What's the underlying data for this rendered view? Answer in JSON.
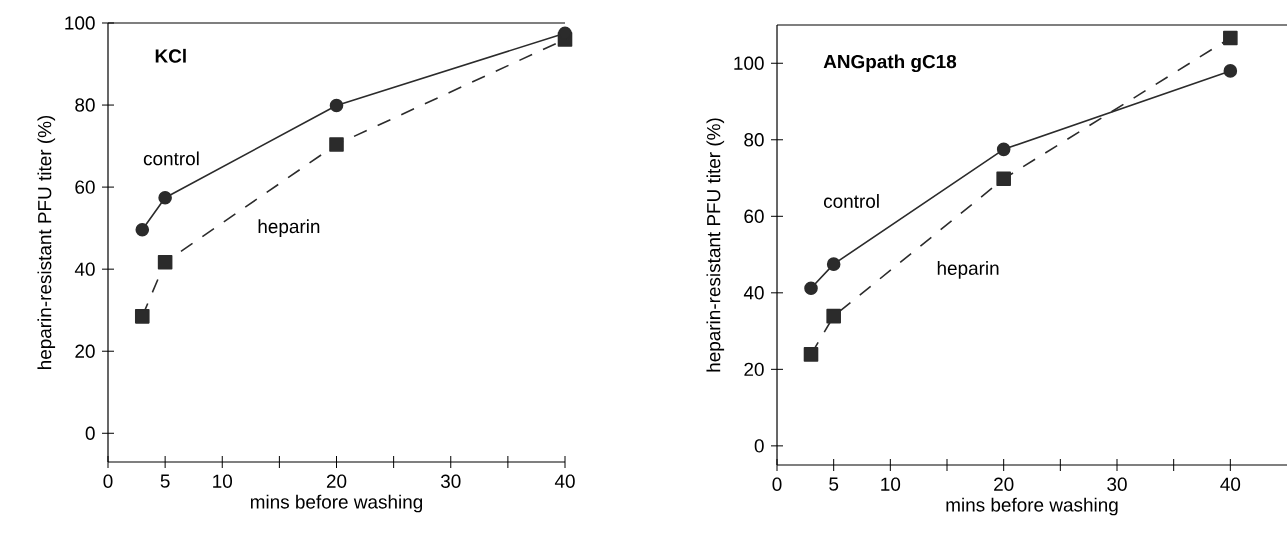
{
  "chart_data": [
    {
      "type": "line",
      "title": "KCl",
      "xlabel": "mins before washing",
      "ylabel": "heparin-resistant PFU titer (%)",
      "xlim": [
        0,
        40
      ],
      "ylim": [
        -7,
        100
      ],
      "xticks": [
        0,
        5,
        10,
        {
          "value": 15,
          "label": null
        },
        20,
        {
          "value": 25,
          "label": null
        },
        30,
        {
          "value": 35,
          "label": null
        },
        40
      ],
      "yticks": [
        0,
        20,
        40,
        60,
        80,
        100
      ],
      "grid": false,
      "legend": false,
      "series": [
        {
          "name": "control",
          "color": "#2b2b2b",
          "marker": "circle",
          "line_style": "solid",
          "x": [
            3,
            5,
            20,
            40
          ],
          "values": [
            49.6,
            57.4,
            79.9,
            97.5
          ]
        },
        {
          "name": "heparin",
          "color": "#2b2b2b",
          "marker": "square",
          "line_style": "dashed",
          "x": [
            3,
            5,
            20,
            40
          ],
          "values": [
            28.5,
            41.7,
            70.4,
            96
          ]
        }
      ]
    },
    {
      "type": "line",
      "title": "ANGpath gC18",
      "xlabel": "mins before washing",
      "ylabel": "heparin-resistant PFU titer (%)",
      "xlim": [
        0,
        45
      ],
      "ylim": [
        -5,
        110
      ],
      "xticks": [
        0,
        5,
        10,
        {
          "value": 15,
          "label": null
        },
        20,
        {
          "value": 25,
          "label": null
        },
        30,
        {
          "value": 35,
          "label": null
        },
        40
      ],
      "yticks": [
        0,
        20,
        40,
        60,
        80,
        100
      ],
      "grid": false,
      "legend": false,
      "series": [
        {
          "name": "control",
          "color": "#2b2b2b",
          "marker": "circle",
          "line_style": "solid",
          "x": [
            3,
            5,
            20,
            40
          ],
          "values": [
            41.2,
            47.5,
            77.5,
            98
          ]
        },
        {
          "name": "heparin",
          "color": "#2b2b2b",
          "marker": "square",
          "line_style": "dashed",
          "x": [
            3,
            5,
            20,
            40
          ],
          "values": [
            23.9,
            33.9,
            69.8,
            106.6
          ]
        }
      ]
    }
  ]
}
